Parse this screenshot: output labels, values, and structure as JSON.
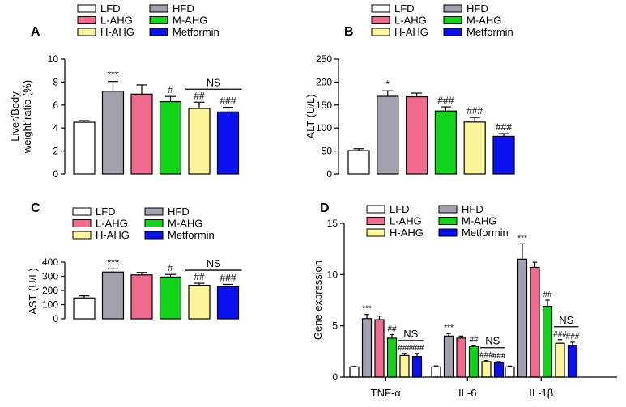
{
  "legend_groups": [
    "LFD",
    "HFD",
    "L-AHG",
    "M-AHG",
    "H-AHG",
    "Metformin"
  ],
  "colors": {
    "LFD": "#ffffff",
    "HFD": "#a3a1ad",
    "L-AHG": "#f06a8e",
    "M-AHG": "#11d41a",
    "H-AHG": "#fbf59a",
    "Metformin": "#0a10f0"
  },
  "chart_data": [
    {
      "panel": "A",
      "type": "bar",
      "categories": [
        "LFD",
        "HFD",
        "L-AHG",
        "M-AHG",
        "H-AHG",
        "Metformin"
      ],
      "values": [
        4.5,
        7.2,
        6.95,
        6.3,
        5.7,
        5.4
      ],
      "errors": [
        0.15,
        0.85,
        0.8,
        0.45,
        0.55,
        0.4
      ],
      "ylabel": "Liver/Body\nweight ratio (%)",
      "ylim": [
        0,
        10
      ],
      "yticks": [
        "0",
        "2",
        "4",
        "6",
        "8",
        "10"
      ],
      "marks": [
        "",
        "***",
        "",
        "#",
        "##",
        "###"
      ],
      "ns": {
        "label": "NS",
        "from": 4,
        "to": 5
      }
    },
    {
      "panel": "B",
      "type": "bar",
      "categories": [
        "LFD",
        "HFD",
        "L-AHG",
        "M-AHG",
        "H-AHG",
        "Metformin"
      ],
      "values": [
        51,
        169,
        168,
        137,
        113,
        82
      ],
      "errors": [
        4,
        12,
        8,
        9,
        10,
        6
      ],
      "ylabel": "ALT (U/L)",
      "ylim": [
        0,
        250
      ],
      "yticks": [
        "0",
        "50",
        "100",
        "150",
        "200",
        "250"
      ],
      "marks": [
        "",
        "*",
        "",
        "###",
        "###",
        "###"
      ]
    },
    {
      "panel": "C",
      "type": "bar",
      "categories": [
        "LFD",
        "HFD",
        "L-AHG",
        "M-AHG",
        "H-AHG",
        "Metformin"
      ],
      "values": [
        147,
        330,
        310,
        295,
        237,
        228
      ],
      "errors": [
        15,
        22,
        17,
        18,
        14,
        15
      ],
      "ylabel": "AST (U/L)",
      "ylim": [
        0,
        400
      ],
      "yticks": [
        "0",
        "100",
        "200",
        "300",
        "400"
      ],
      "marks": [
        "",
        "***",
        "",
        "#",
        "##",
        "###"
      ],
      "ns": {
        "label": "NS",
        "from": 4,
        "to": 5
      }
    },
    {
      "panel": "D",
      "type": "bar",
      "categories": [
        "TNF-α",
        "IL-6",
        "IL-1β"
      ],
      "series": [
        {
          "name": "LFD",
          "values": [
            1.0,
            1.0,
            1.0
          ],
          "errors": [
            0.05,
            0.1,
            0.08
          ]
        },
        {
          "name": "HFD",
          "values": [
            5.7,
            4.0,
            11.5
          ],
          "errors": [
            0.4,
            0.25,
            1.5
          ]
        },
        {
          "name": "L-AHG",
          "values": [
            5.6,
            3.8,
            10.7
          ],
          "errors": [
            0.35,
            0.2,
            0.5
          ]
        },
        {
          "name": "M-AHG",
          "values": [
            3.8,
            3.0,
            6.9
          ],
          "errors": [
            0.35,
            0.1,
            0.6
          ]
        },
        {
          "name": "H-AHG",
          "values": [
            2.1,
            1.5,
            3.3
          ],
          "errors": [
            0.2,
            0.1,
            0.35
          ]
        },
        {
          "name": "Metformin",
          "values": [
            2.0,
            1.4,
            3.1
          ],
          "errors": [
            0.3,
            0.1,
            0.3
          ]
        }
      ],
      "ylabel": "Gene expression",
      "ylim": [
        0,
        15
      ],
      "yticks": [
        "0",
        "5",
        "10",
        "15"
      ],
      "marks": [
        [
          "",
          "***",
          "",
          "##",
          "###",
          "###"
        ],
        [
          "",
          "***",
          "",
          "##",
          "###",
          "###"
        ],
        [
          "",
          "***",
          "",
          "##",
          "###",
          "###"
        ]
      ],
      "ns": {
        "label": "NS",
        "from": 4,
        "to": 5
      }
    }
  ]
}
